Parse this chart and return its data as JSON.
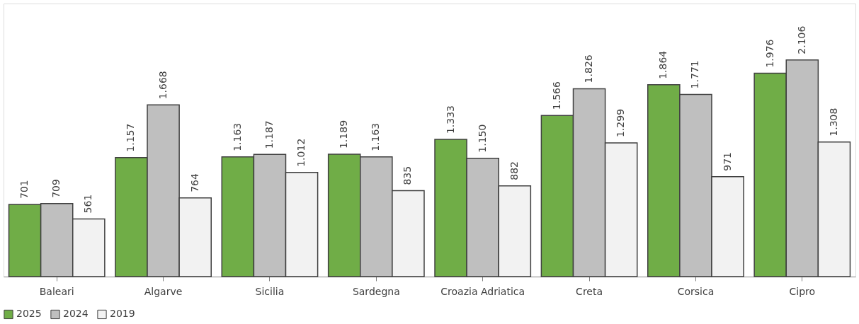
{
  "chart_data": {
    "type": "bar",
    "categories": [
      "Baleari",
      "Algarve",
      "Sicilia",
      "Sardegna",
      "Croazia Adriatica",
      "Creta",
      "Corsica",
      "Cipro"
    ],
    "series": [
      {
        "name": "2025",
        "color": "#70ad47",
        "values": [
          701,
          1157,
          1163,
          1189,
          1333,
          1566,
          1864,
          1976
        ],
        "value_labels": [
          "701",
          "1.157",
          "1.163",
          "1.189",
          "1.333",
          "1.566",
          "1.864",
          "1.976"
        ]
      },
      {
        "name": "2024",
        "color": "#bfbfbf",
        "values": [
          709,
          1668,
          1187,
          1163,
          1150,
          1826,
          1771,
          2106
        ],
        "value_labels": [
          "709",
          "1.668",
          "1.187",
          "1.163",
          "1.150",
          "1.826",
          "1.771",
          "2.106"
        ]
      },
      {
        "name": "2019",
        "color": "#f2f2f2",
        "values": [
          561,
          764,
          1012,
          835,
          882,
          1299,
          971,
          1308
        ],
        "value_labels": [
          "561",
          "764",
          "1.012",
          "835",
          "882",
          "1.299",
          "971",
          "1.308"
        ]
      }
    ],
    "legend": "bottom",
    "grid": false
  }
}
